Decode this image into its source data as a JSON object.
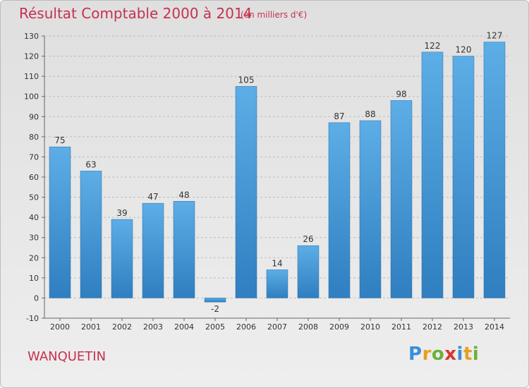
{
  "header": {
    "title": "Résultat Comptable 2000 à 2014",
    "subtitle": "(en milliers d'€)"
  },
  "footer": {
    "commune": "WANQUETIN",
    "logo_text": "Proxiti"
  },
  "colors": {
    "title": "#c6314e",
    "bar_top": "#5dade6",
    "bar_bottom": "#2f7fc1",
    "grid": "#bcbcbc"
  },
  "chart_data": {
    "type": "bar",
    "title": "Résultat Comptable 2000 à 2014",
    "subtitle": "(en milliers d'€)",
    "xlabel": "",
    "ylabel": "",
    "categories": [
      "2000",
      "2001",
      "2002",
      "2003",
      "2004",
      "2005",
      "2006",
      "2007",
      "2008",
      "2009",
      "2010",
      "2011",
      "2012",
      "2013",
      "2014"
    ],
    "values": [
      75,
      63,
      39,
      47,
      48,
      -2,
      105,
      14,
      26,
      87,
      88,
      98,
      122,
      120,
      127
    ],
    "ylim": [
      -10,
      130
    ],
    "yticks": [
      -10,
      0,
      10,
      20,
      30,
      40,
      50,
      60,
      70,
      80,
      90,
      100,
      110,
      120,
      130
    ],
    "grid": true,
    "data_labels": true
  }
}
